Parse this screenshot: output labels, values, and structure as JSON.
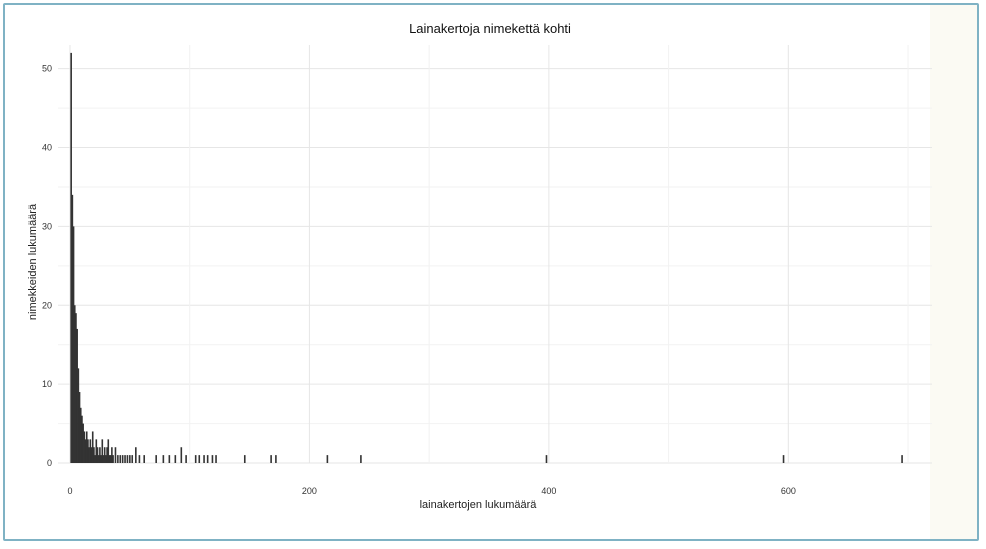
{
  "chart_data": {
    "type": "bar",
    "title": "Lainakertoja nimekettä kohti",
    "xlabel": "lainakertojen lukumäärä",
    "ylabel": "nimekkeiden lukumäärä",
    "xlim": [
      -10,
      720
    ],
    "ylim": [
      0,
      53
    ],
    "x_ticks": [
      0,
      200,
      400,
      600
    ],
    "y_ticks": [
      0,
      10,
      20,
      30,
      40,
      50
    ],
    "grid": true,
    "bar_color": "#333333",
    "points": [
      {
        "x": 1,
        "y": 52
      },
      {
        "x": 2,
        "y": 34
      },
      {
        "x": 3,
        "y": 30
      },
      {
        "x": 4,
        "y": 20
      },
      {
        "x": 5,
        "y": 19
      },
      {
        "x": 6,
        "y": 17
      },
      {
        "x": 7,
        "y": 12
      },
      {
        "x": 8,
        "y": 9
      },
      {
        "x": 9,
        "y": 7
      },
      {
        "x": 10,
        "y": 6
      },
      {
        "x": 11,
        "y": 5
      },
      {
        "x": 12,
        "y": 4
      },
      {
        "x": 13,
        "y": 3
      },
      {
        "x": 14,
        "y": 4
      },
      {
        "x": 15,
        "y": 3
      },
      {
        "x": 16,
        "y": 2
      },
      {
        "x": 17,
        "y": 3
      },
      {
        "x": 18,
        "y": 2
      },
      {
        "x": 19,
        "y": 4
      },
      {
        "x": 20,
        "y": 2
      },
      {
        "x": 21,
        "y": 1
      },
      {
        "x": 22,
        "y": 3
      },
      {
        "x": 23,
        "y": 2
      },
      {
        "x": 24,
        "y": 1
      },
      {
        "x": 25,
        "y": 2
      },
      {
        "x": 26,
        "y": 1
      },
      {
        "x": 27,
        "y": 3
      },
      {
        "x": 28,
        "y": 1
      },
      {
        "x": 29,
        "y": 2
      },
      {
        "x": 30,
        "y": 1
      },
      {
        "x": 31,
        "y": 2
      },
      {
        "x": 32,
        "y": 3
      },
      {
        "x": 33,
        "y": 1
      },
      {
        "x": 34,
        "y": 1
      },
      {
        "x": 35,
        "y": 2
      },
      {
        "x": 36,
        "y": 1
      },
      {
        "x": 38,
        "y": 2
      },
      {
        "x": 40,
        "y": 1
      },
      {
        "x": 42,
        "y": 1
      },
      {
        "x": 44,
        "y": 1
      },
      {
        "x": 46,
        "y": 1
      },
      {
        "x": 48,
        "y": 1
      },
      {
        "x": 50,
        "y": 1
      },
      {
        "x": 52,
        "y": 1
      },
      {
        "x": 55,
        "y": 2
      },
      {
        "x": 58,
        "y": 1
      },
      {
        "x": 62,
        "y": 1
      },
      {
        "x": 72,
        "y": 1
      },
      {
        "x": 78,
        "y": 1
      },
      {
        "x": 83,
        "y": 1
      },
      {
        "x": 88,
        "y": 1
      },
      {
        "x": 93,
        "y": 2
      },
      {
        "x": 97,
        "y": 1
      },
      {
        "x": 105,
        "y": 1
      },
      {
        "x": 108,
        "y": 1
      },
      {
        "x": 112,
        "y": 1
      },
      {
        "x": 115,
        "y": 1
      },
      {
        "x": 119,
        "y": 1
      },
      {
        "x": 122,
        "y": 1
      },
      {
        "x": 146,
        "y": 1
      },
      {
        "x": 168,
        "y": 1
      },
      {
        "x": 172,
        "y": 1
      },
      {
        "x": 215,
        "y": 1
      },
      {
        "x": 243,
        "y": 1
      },
      {
        "x": 398,
        "y": 1
      },
      {
        "x": 596,
        "y": 1
      },
      {
        "x": 695,
        "y": 1
      }
    ]
  }
}
